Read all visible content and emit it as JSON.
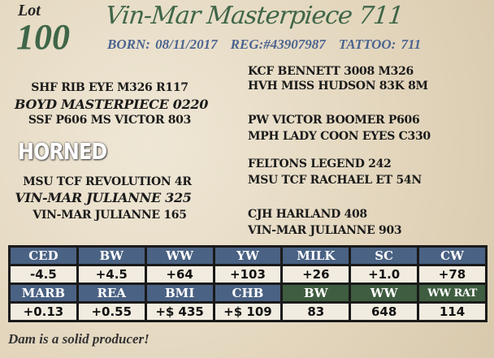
{
  "lot": {
    "label": "Lot",
    "number": "100"
  },
  "name": "Vin-Mar Masterpiece 711",
  "info": {
    "born": "BORN:  08/11/2017",
    "reg": "REG:#43907987",
    "tattoo": "TATTOO:  711"
  },
  "pedigree": {
    "sire_sire": "SHF RIB EYE M326 R117",
    "sire": "BOYD MASTERPIECE 0220",
    "sire_dam": "SSF P606 MS VICTOR 803",
    "dam_sire": "MSU TCF REVOLUTION 4R",
    "dam": "VIN-MAR JULIANNE 325",
    "dam_dam": "VIN-MAR JULIANNE 165",
    "right": [
      "KCF BENNETT 3008 M326",
      "HVH MISS HUDSON 83K 8M",
      "PW VICTOR BOOMER P606",
      "MPH LADY COON EYES C330",
      "FELTONS LEGEND 242",
      "MSU TCF RACHAEL ET 54N",
      "CJH HARLAND 408",
      "VIN-MAR JULIANNE 903"
    ]
  },
  "badge": "HORNED",
  "epd": {
    "row1_headers": [
      "CED",
      "BW",
      "WW",
      "YW",
      "MILK",
      "SC",
      "CW"
    ],
    "row1_values": [
      "-4.5",
      "+4.5",
      "+64",
      "+103",
      "+26",
      "+1.0",
      "+78"
    ],
    "row2_headers": [
      "MARB",
      "REA",
      "BMI",
      "CHB",
      "BW",
      "WW",
      "WW RAT"
    ],
    "row2_values": [
      "+0.13",
      "+0.55",
      "+$ 435",
      "+$ 109",
      "83",
      "648",
      "114"
    ]
  },
  "colors": {
    "epd_header": "#4a6283",
    "actual_header": "#3f5d40",
    "title": "#3f6648",
    "info": "#4b6490"
  },
  "note": "Dam is a solid producer!"
}
